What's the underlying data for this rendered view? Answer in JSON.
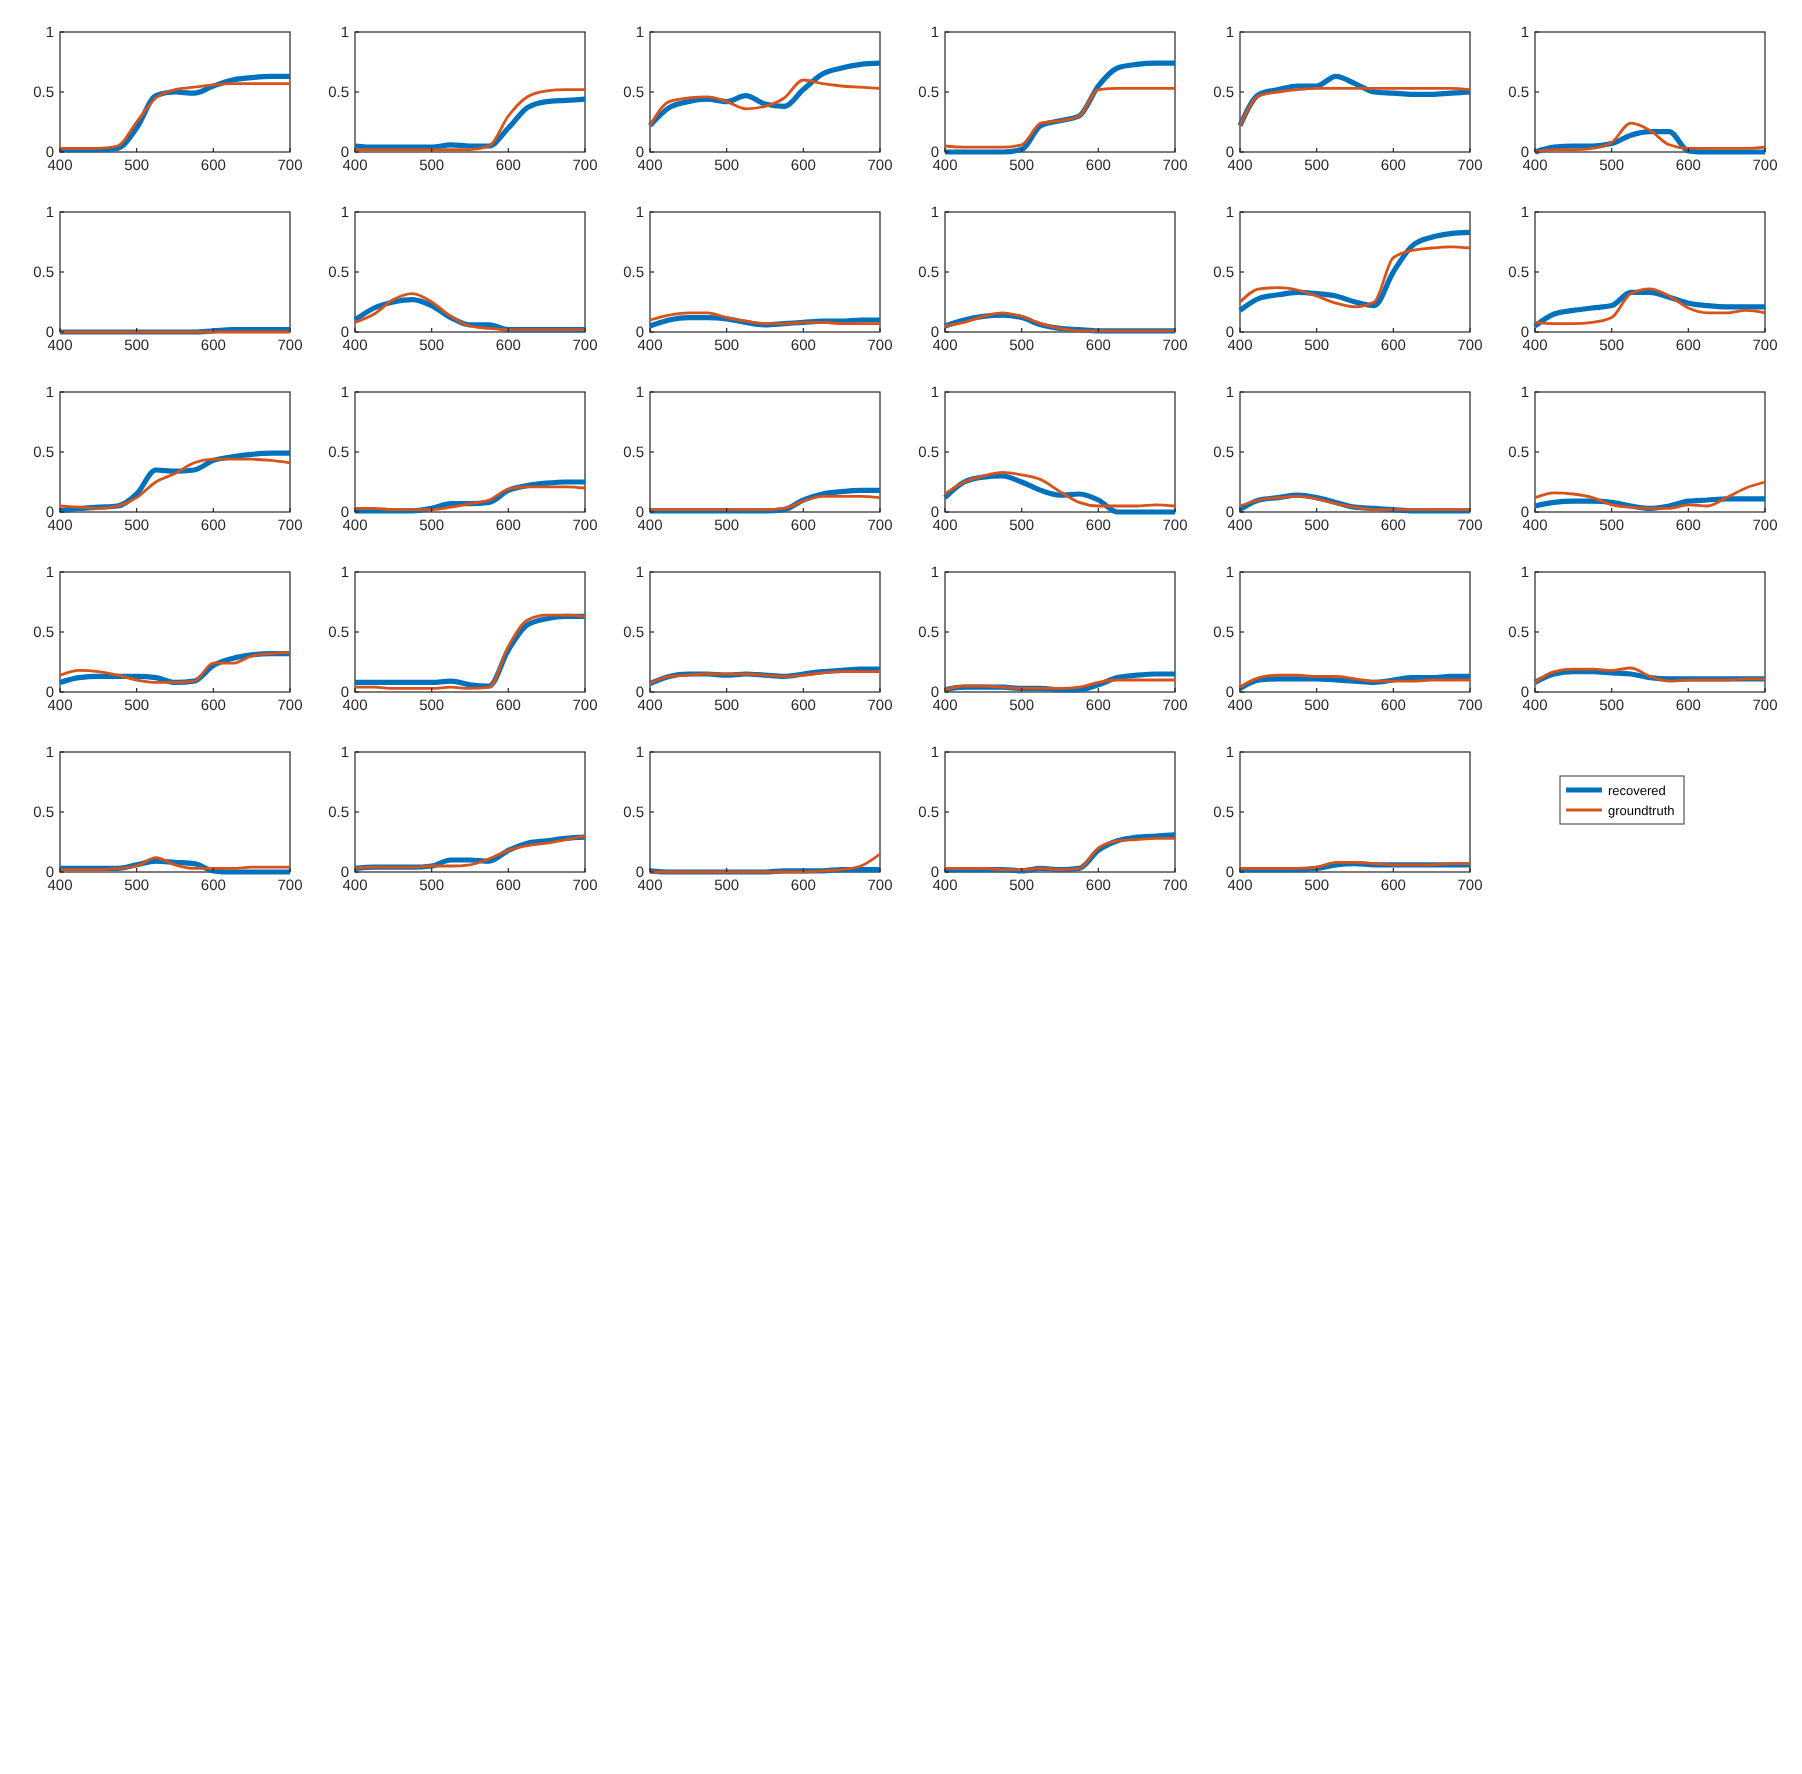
{
  "chart_data": [
    {
      "type": "line",
      "x": [
        400,
        425,
        450,
        475,
        500,
        525,
        550,
        575,
        600,
        625,
        650,
        675,
        700
      ],
      "xlim": [
        400,
        700
      ],
      "xticks": [
        400,
        500,
        600,
        700
      ],
      "ylim": [
        0,
        1
      ],
      "yticks": [
        0,
        0.5,
        1
      ],
      "series": [
        {
          "color": "#0072bd",
          "values": [
            0.02,
            0.02,
            0.02,
            0.03,
            0.2,
            0.47,
            0.5,
            0.49,
            0.55,
            0.6,
            0.62,
            0.63,
            0.63
          ]
        },
        {
          "color": "#d95319",
          "values": [
            0.03,
            0.03,
            0.03,
            0.05,
            0.25,
            0.45,
            0.52,
            0.54,
            0.56,
            0.57,
            0.57,
            0.57,
            0.57
          ]
        }
      ]
    },
    {
      "type": "line",
      "x": [
        400,
        425,
        450,
        475,
        500,
        525,
        550,
        575,
        600,
        625,
        650,
        675,
        700
      ],
      "xlim": [
        400,
        700
      ],
      "xticks": [
        400,
        500,
        600,
        700
      ],
      "ylim": [
        0,
        1
      ],
      "yticks": [
        0,
        0.5,
        1
      ],
      "series": [
        {
          "color": "#0072bd",
          "values": [
            0.05,
            0.04,
            0.04,
            0.04,
            0.04,
            0.06,
            0.05,
            0.05,
            0.2,
            0.37,
            0.42,
            0.43,
            0.44
          ]
        },
        {
          "color": "#d95319",
          "values": [
            0.02,
            0.02,
            0.02,
            0.02,
            0.02,
            0.02,
            0.02,
            0.05,
            0.3,
            0.46,
            0.51,
            0.52,
            0.52
          ]
        }
      ]
    },
    {
      "type": "line",
      "x": [
        400,
        425,
        450,
        475,
        500,
        525,
        550,
        575,
        600,
        625,
        650,
        675,
        700
      ],
      "xlim": [
        400,
        700
      ],
      "xticks": [
        400,
        500,
        600,
        700
      ],
      "ylim": [
        0,
        1
      ],
      "yticks": [
        0,
        0.5,
        1
      ],
      "series": [
        {
          "color": "#0072bd",
          "values": [
            0.22,
            0.37,
            0.42,
            0.44,
            0.42,
            0.47,
            0.4,
            0.38,
            0.52,
            0.65,
            0.7,
            0.73,
            0.74
          ]
        },
        {
          "color": "#d95319",
          "values": [
            0.22,
            0.42,
            0.45,
            0.46,
            0.42,
            0.36,
            0.38,
            0.45,
            0.6,
            0.57,
            0.55,
            0.54,
            0.53
          ]
        }
      ]
    },
    {
      "type": "line",
      "x": [
        400,
        425,
        450,
        475,
        500,
        525,
        550,
        575,
        600,
        625,
        650,
        675,
        700
      ],
      "xlim": [
        400,
        700
      ],
      "xticks": [
        400,
        500,
        600,
        700
      ],
      "ylim": [
        0,
        1
      ],
      "yticks": [
        0,
        0.5,
        1
      ],
      "series": [
        {
          "color": "#0072bd",
          "values": [
            0,
            0,
            0,
            0,
            0.02,
            0.22,
            0.26,
            0.3,
            0.55,
            0.7,
            0.73,
            0.74,
            0.74
          ]
        },
        {
          "color": "#d95319",
          "values": [
            0.05,
            0.04,
            0.04,
            0.04,
            0.06,
            0.24,
            0.26,
            0.3,
            0.52,
            0.53,
            0.53,
            0.53,
            0.53
          ]
        }
      ]
    },
    {
      "type": "line",
      "x": [
        400,
        425,
        450,
        475,
        500,
        525,
        550,
        575,
        600,
        625,
        650,
        675,
        700
      ],
      "xlim": [
        400,
        700
      ],
      "xticks": [
        400,
        500,
        600,
        700
      ],
      "ylim": [
        0,
        1
      ],
      "yticks": [
        0,
        0.5,
        1
      ],
      "series": [
        {
          "color": "#0072bd",
          "values": [
            0.22,
            0.48,
            0.52,
            0.55,
            0.55,
            0.63,
            0.57,
            0.5,
            0.49,
            0.48,
            0.48,
            0.49,
            0.5
          ]
        },
        {
          "color": "#d95319",
          "values": [
            0.22,
            0.47,
            0.5,
            0.52,
            0.53,
            0.53,
            0.53,
            0.53,
            0.53,
            0.53,
            0.53,
            0.53,
            0.52
          ]
        }
      ]
    },
    {
      "type": "line",
      "x": [
        400,
        425,
        450,
        475,
        500,
        525,
        550,
        575,
        600,
        625,
        650,
        675,
        700
      ],
      "xlim": [
        400,
        700
      ],
      "xticks": [
        400,
        500,
        600,
        700
      ],
      "ylim": [
        0,
        1
      ],
      "yticks": [
        0,
        0.5,
        1
      ],
      "series": [
        {
          "color": "#0072bd",
          "values": [
            0,
            0.04,
            0.05,
            0.05,
            0.07,
            0.14,
            0.17,
            0.17,
            0.01,
            0,
            0,
            0,
            0
          ]
        },
        {
          "color": "#d95319",
          "values": [
            0,
            0.02,
            0.02,
            0.03,
            0.08,
            0.24,
            0.18,
            0.06,
            0.03,
            0.03,
            0.03,
            0.03,
            0.04
          ]
        }
      ]
    },
    {
      "type": "line",
      "x": [
        400,
        425,
        450,
        475,
        500,
        525,
        550,
        575,
        600,
        625,
        650,
        675,
        700
      ],
      "xlim": [
        400,
        700
      ],
      "xticks": [
        400,
        500,
        600,
        700
      ],
      "ylim": [
        0,
        1
      ],
      "yticks": [
        0,
        0.5,
        1
      ],
      "series": [
        {
          "color": "#0072bd",
          "values": [
            0,
            0,
            0,
            0,
            0,
            0,
            0,
            0,
            0.01,
            0.02,
            0.02,
            0.02,
            0.02
          ]
        },
        {
          "color": "#d95319",
          "values": [
            0,
            0,
            0,
            0,
            0,
            0,
            0,
            0,
            0,
            0,
            0,
            0,
            0
          ]
        }
      ]
    },
    {
      "type": "line",
      "x": [
        400,
        425,
        450,
        475,
        500,
        525,
        550,
        575,
        600,
        625,
        650,
        675,
        700
      ],
      "xlim": [
        400,
        700
      ],
      "xticks": [
        400,
        500,
        600,
        700
      ],
      "ylim": [
        0,
        1
      ],
      "yticks": [
        0,
        0.5,
        1
      ],
      "series": [
        {
          "color": "#0072bd",
          "values": [
            0.1,
            0.2,
            0.25,
            0.27,
            0.22,
            0.12,
            0.06,
            0.06,
            0.02,
            0.02,
            0.02,
            0.02,
            0.02
          ]
        },
        {
          "color": "#d95319",
          "values": [
            0.08,
            0.15,
            0.27,
            0.32,
            0.25,
            0.13,
            0.05,
            0.03,
            0.02,
            0.02,
            0.02,
            0.02,
            0.02
          ]
        }
      ]
    },
    {
      "type": "line",
      "x": [
        400,
        425,
        450,
        475,
        500,
        525,
        550,
        575,
        600,
        625,
        650,
        675,
        700
      ],
      "xlim": [
        400,
        700
      ],
      "xticks": [
        400,
        500,
        600,
        700
      ],
      "ylim": [
        0,
        1
      ],
      "yticks": [
        0,
        0.5,
        1
      ],
      "series": [
        {
          "color": "#0072bd",
          "values": [
            0.05,
            0.1,
            0.12,
            0.12,
            0.11,
            0.08,
            0.06,
            0.07,
            0.08,
            0.09,
            0.09,
            0.1,
            0.1
          ]
        },
        {
          "color": "#d95319",
          "values": [
            0.1,
            0.14,
            0.16,
            0.16,
            0.12,
            0.09,
            0.07,
            0.07,
            0.08,
            0.08,
            0.07,
            0.07,
            0.07
          ]
        }
      ]
    },
    {
      "type": "line",
      "x": [
        400,
        425,
        450,
        475,
        500,
        525,
        550,
        575,
        600,
        625,
        650,
        675,
        700
      ],
      "xlim": [
        400,
        700
      ],
      "xticks": [
        400,
        500,
        600,
        700
      ],
      "ylim": [
        0,
        1
      ],
      "yticks": [
        0,
        0.5,
        1
      ],
      "series": [
        {
          "color": "#0072bd",
          "values": [
            0.05,
            0.1,
            0.13,
            0.14,
            0.12,
            0.06,
            0.03,
            0.02,
            0.01,
            0.01,
            0.01,
            0.01,
            0.01
          ]
        },
        {
          "color": "#d95319",
          "values": [
            0.05,
            0.08,
            0.13,
            0.16,
            0.13,
            0.07,
            0.03,
            0.01,
            0.01,
            0.01,
            0.01,
            0.01,
            0.01
          ]
        }
      ]
    },
    {
      "type": "line",
      "x": [
        400,
        425,
        450,
        475,
        500,
        525,
        550,
        575,
        600,
        625,
        650,
        675,
        700
      ],
      "xlim": [
        400,
        700
      ],
      "xticks": [
        400,
        500,
        600,
        700
      ],
      "ylim": [
        0,
        1
      ],
      "yticks": [
        0,
        0.5,
        1
      ],
      "series": [
        {
          "color": "#0072bd",
          "values": [
            0.18,
            0.28,
            0.31,
            0.33,
            0.32,
            0.3,
            0.25,
            0.22,
            0.5,
            0.72,
            0.79,
            0.82,
            0.83
          ]
        },
        {
          "color": "#d95319",
          "values": [
            0.25,
            0.36,
            0.37,
            0.35,
            0.3,
            0.24,
            0.21,
            0.25,
            0.62,
            0.68,
            0.7,
            0.71,
            0.7
          ]
        }
      ]
    },
    {
      "type": "line",
      "x": [
        400,
        425,
        450,
        475,
        500,
        525,
        550,
        575,
        600,
        625,
        650,
        675,
        700
      ],
      "xlim": [
        400,
        700
      ],
      "xticks": [
        400,
        500,
        600,
        700
      ],
      "ylim": [
        0,
        1
      ],
      "yticks": [
        0,
        0.5,
        1
      ],
      "series": [
        {
          "color": "#0072bd",
          "values": [
            0.05,
            0.15,
            0.18,
            0.2,
            0.22,
            0.33,
            0.33,
            0.29,
            0.24,
            0.22,
            0.21,
            0.21,
            0.21
          ]
        },
        {
          "color": "#d95319",
          "values": [
            0.08,
            0.07,
            0.07,
            0.08,
            0.12,
            0.32,
            0.36,
            0.3,
            0.2,
            0.16,
            0.16,
            0.18,
            0.16
          ]
        }
      ]
    },
    {
      "type": "line",
      "x": [
        400,
        425,
        450,
        475,
        500,
        525,
        550,
        575,
        600,
        625,
        650,
        675,
        700
      ],
      "xlim": [
        400,
        700
      ],
      "xticks": [
        400,
        500,
        600,
        700
      ],
      "ylim": [
        0,
        1
      ],
      "yticks": [
        0,
        0.5,
        1
      ],
      "series": [
        {
          "color": "#0072bd",
          "values": [
            0.01,
            0.03,
            0.04,
            0.05,
            0.15,
            0.35,
            0.34,
            0.35,
            0.43,
            0.46,
            0.48,
            0.49,
            0.49
          ]
        },
        {
          "color": "#d95319",
          "values": [
            0.05,
            0.04,
            0.03,
            0.05,
            0.12,
            0.25,
            0.32,
            0.41,
            0.44,
            0.44,
            0.44,
            0.43,
            0.41
          ]
        }
      ]
    },
    {
      "type": "line",
      "x": [
        400,
        425,
        450,
        475,
        500,
        525,
        550,
        575,
        600,
        625,
        650,
        675,
        700
      ],
      "xlim": [
        400,
        700
      ],
      "xticks": [
        400,
        500,
        600,
        700
      ],
      "ylim": [
        0,
        1
      ],
      "yticks": [
        0,
        0.5,
        1
      ],
      "series": [
        {
          "color": "#0072bd",
          "values": [
            0.01,
            0.01,
            0.01,
            0.01,
            0.03,
            0.07,
            0.07,
            0.08,
            0.18,
            0.22,
            0.24,
            0.25,
            0.25
          ]
        },
        {
          "color": "#d95319",
          "values": [
            0.03,
            0.03,
            0.02,
            0.02,
            0.02,
            0.04,
            0.07,
            0.1,
            0.19,
            0.21,
            0.21,
            0.21,
            0.2
          ]
        }
      ]
    },
    {
      "type": "line",
      "x": [
        400,
        425,
        450,
        475,
        500,
        525,
        550,
        575,
        600,
        625,
        650,
        675,
        700
      ],
      "xlim": [
        400,
        700
      ],
      "xticks": [
        400,
        500,
        600,
        700
      ],
      "ylim": [
        0,
        1
      ],
      "yticks": [
        0,
        0.5,
        1
      ],
      "series": [
        {
          "color": "#0072bd",
          "values": [
            0.01,
            0.01,
            0.01,
            0.01,
            0.01,
            0.01,
            0.01,
            0.02,
            0.1,
            0.15,
            0.17,
            0.18,
            0.18
          ]
        },
        {
          "color": "#d95319",
          "values": [
            0.02,
            0.02,
            0.02,
            0.02,
            0.02,
            0.02,
            0.02,
            0.03,
            0.09,
            0.13,
            0.13,
            0.13,
            0.12
          ]
        }
      ]
    },
    {
      "type": "line",
      "x": [
        400,
        425,
        450,
        475,
        500,
        525,
        550,
        575,
        600,
        625,
        650,
        675,
        700
      ],
      "xlim": [
        400,
        700
      ],
      "xticks": [
        400,
        500,
        600,
        700
      ],
      "ylim": [
        0,
        1
      ],
      "yticks": [
        0,
        0.5,
        1
      ],
      "series": [
        {
          "color": "#0072bd",
          "values": [
            0.12,
            0.25,
            0.29,
            0.3,
            0.25,
            0.18,
            0.14,
            0.15,
            0.1,
            0,
            0,
            0,
            0
          ]
        },
        {
          "color": "#d95319",
          "values": [
            0.15,
            0.25,
            0.3,
            0.33,
            0.31,
            0.27,
            0.17,
            0.08,
            0.05,
            0.05,
            0.05,
            0.06,
            0.05
          ]
        }
      ]
    },
    {
      "type": "line",
      "x": [
        400,
        425,
        450,
        475,
        500,
        525,
        550,
        575,
        600,
        625,
        650,
        675,
        700
      ],
      "xlim": [
        400,
        700
      ],
      "xticks": [
        400,
        500,
        600,
        700
      ],
      "ylim": [
        0,
        1
      ],
      "yticks": [
        0,
        0.5,
        1
      ],
      "series": [
        {
          "color": "#0072bd",
          "values": [
            0.02,
            0.1,
            0.12,
            0.14,
            0.12,
            0.08,
            0.04,
            0.03,
            0.02,
            0.01,
            0.01,
            0.01,
            0.01
          ]
        },
        {
          "color": "#d95319",
          "values": [
            0.05,
            0.1,
            0.12,
            0.13,
            0.11,
            0.07,
            0.04,
            0.02,
            0.02,
            0.02,
            0.02,
            0.02,
            0.02
          ]
        }
      ]
    },
    {
      "type": "line",
      "x": [
        400,
        425,
        450,
        475,
        500,
        525,
        550,
        575,
        600,
        625,
        650,
        675,
        700
      ],
      "xlim": [
        400,
        700
      ],
      "xticks": [
        400,
        500,
        600,
        700
      ],
      "ylim": [
        0,
        1
      ],
      "yticks": [
        0,
        0.5,
        1
      ],
      "series": [
        {
          "color": "#0072bd",
          "values": [
            0.05,
            0.08,
            0.09,
            0.09,
            0.08,
            0.05,
            0.03,
            0.05,
            0.09,
            0.1,
            0.11,
            0.11,
            0.11
          ]
        },
        {
          "color": "#d95319",
          "values": [
            0.12,
            0.16,
            0.15,
            0.12,
            0.06,
            0.04,
            0.03,
            0.03,
            0.06,
            0.05,
            0.12,
            0.2,
            0.25
          ]
        }
      ]
    },
    {
      "type": "line",
      "x": [
        400,
        425,
        450,
        475,
        500,
        525,
        550,
        575,
        600,
        625,
        650,
        675,
        700
      ],
      "xlim": [
        400,
        700
      ],
      "xticks": [
        400,
        500,
        600,
        700
      ],
      "ylim": [
        0,
        1
      ],
      "yticks": [
        0,
        0.5,
        1
      ],
      "series": [
        {
          "color": "#0072bd",
          "values": [
            0.08,
            0.12,
            0.13,
            0.13,
            0.13,
            0.12,
            0.08,
            0.09,
            0.22,
            0.28,
            0.31,
            0.32,
            0.32
          ]
        },
        {
          "color": "#d95319",
          "values": [
            0.14,
            0.18,
            0.17,
            0.14,
            0.1,
            0.08,
            0.08,
            0.09,
            0.24,
            0.24,
            0.3,
            0.32,
            0.33
          ]
        }
      ]
    },
    {
      "type": "line",
      "x": [
        400,
        425,
        450,
        475,
        500,
        525,
        550,
        575,
        600,
        625,
        650,
        675,
        700
      ],
      "xlim": [
        400,
        700
      ],
      "xticks": [
        400,
        500,
        600,
        700
      ],
      "ylim": [
        0,
        1
      ],
      "yticks": [
        0,
        0.5,
        1
      ],
      "series": [
        {
          "color": "#0072bd",
          "values": [
            0.08,
            0.08,
            0.08,
            0.08,
            0.08,
            0.09,
            0.06,
            0.05,
            0.35,
            0.56,
            0.61,
            0.63,
            0.63
          ]
        },
        {
          "color": "#d95319",
          "values": [
            0.04,
            0.04,
            0.03,
            0.03,
            0.03,
            0.04,
            0.03,
            0.04,
            0.38,
            0.6,
            0.64,
            0.64,
            0.63
          ]
        }
      ]
    },
    {
      "type": "line",
      "x": [
        400,
        425,
        450,
        475,
        500,
        525,
        550,
        575,
        600,
        625,
        650,
        675,
        700
      ],
      "xlim": [
        400,
        700
      ],
      "xticks": [
        400,
        500,
        600,
        700
      ],
      "ylim": [
        0,
        1
      ],
      "yticks": [
        0,
        0.5,
        1
      ],
      "series": [
        {
          "color": "#0072bd",
          "values": [
            0.07,
            0.13,
            0.15,
            0.15,
            0.14,
            0.15,
            0.14,
            0.13,
            0.15,
            0.17,
            0.18,
            0.19,
            0.19
          ]
        },
        {
          "color": "#d95319",
          "values": [
            0.07,
            0.13,
            0.14,
            0.15,
            0.15,
            0.15,
            0.14,
            0.13,
            0.14,
            0.16,
            0.17,
            0.17,
            0.17
          ]
        }
      ]
    },
    {
      "type": "line",
      "x": [
        400,
        425,
        450,
        475,
        500,
        525,
        550,
        575,
        600,
        625,
        650,
        675,
        700
      ],
      "xlim": [
        400,
        700
      ],
      "xticks": [
        400,
        500,
        600,
        700
      ],
      "ylim": [
        0,
        1
      ],
      "yticks": [
        0,
        0.5,
        1
      ],
      "series": [
        {
          "color": "#0072bd",
          "values": [
            0.02,
            0.04,
            0.04,
            0.04,
            0.03,
            0.03,
            0.02,
            0.02,
            0.06,
            0.12,
            0.14,
            0.15,
            0.15
          ]
        },
        {
          "color": "#d95319",
          "values": [
            0.02,
            0.05,
            0.05,
            0.04,
            0.03,
            0.03,
            0.03,
            0.04,
            0.08,
            0.1,
            0.1,
            0.1,
            0.1
          ]
        }
      ]
    },
    {
      "type": "line",
      "x": [
        400,
        425,
        450,
        475,
        500,
        525,
        550,
        575,
        600,
        625,
        650,
        675,
        700
      ],
      "xlim": [
        400,
        700
      ],
      "xticks": [
        400,
        500,
        600,
        700
      ],
      "ylim": [
        0,
        1
      ],
      "yticks": [
        0,
        0.5,
        1
      ],
      "series": [
        {
          "color": "#0072bd",
          "values": [
            0.03,
            0.1,
            0.11,
            0.11,
            0.11,
            0.1,
            0.09,
            0.08,
            0.1,
            0.12,
            0.12,
            0.13,
            0.13
          ]
        },
        {
          "color": "#d95319",
          "values": [
            0.04,
            0.12,
            0.14,
            0.14,
            0.13,
            0.13,
            0.11,
            0.09,
            0.09,
            0.09,
            0.1,
            0.1,
            0.1
          ]
        }
      ]
    },
    {
      "type": "line",
      "x": [
        400,
        425,
        450,
        475,
        500,
        525,
        550,
        575,
        600,
        625,
        650,
        675,
        700
      ],
      "xlim": [
        400,
        700
      ],
      "xticks": [
        400,
        500,
        600,
        700
      ],
      "ylim": [
        0,
        1
      ],
      "yticks": [
        0,
        0.5,
        1
      ],
      "series": [
        {
          "color": "#0072bd",
          "values": [
            0.08,
            0.15,
            0.17,
            0.17,
            0.16,
            0.15,
            0.12,
            0.11,
            0.11,
            0.11,
            0.11,
            0.11,
            0.11
          ]
        },
        {
          "color": "#d95319",
          "values": [
            0.08,
            0.17,
            0.19,
            0.19,
            0.18,
            0.2,
            0.13,
            0.09,
            0.1,
            0.1,
            0.1,
            0.11,
            0.11
          ]
        }
      ]
    },
    {
      "type": "line",
      "x": [
        400,
        425,
        450,
        475,
        500,
        525,
        550,
        575,
        600,
        625,
        650,
        675,
        700
      ],
      "xlim": [
        400,
        700
      ],
      "xticks": [
        400,
        500,
        600,
        700
      ],
      "ylim": [
        0,
        1
      ],
      "yticks": [
        0,
        0.5,
        1
      ],
      "series": [
        {
          "color": "#0072bd",
          "values": [
            0.03,
            0.03,
            0.03,
            0.03,
            0.06,
            0.09,
            0.08,
            0.07,
            0.01,
            0,
            0,
            0,
            0
          ]
        },
        {
          "color": "#d95319",
          "values": [
            0.02,
            0.02,
            0.02,
            0.03,
            0.05,
            0.12,
            0.06,
            0.03,
            0.03,
            0.03,
            0.04,
            0.04,
            0.04
          ]
        }
      ]
    },
    {
      "type": "line",
      "x": [
        400,
        425,
        450,
        475,
        500,
        525,
        550,
        575,
        600,
        625,
        650,
        675,
        700
      ],
      "xlim": [
        400,
        700
      ],
      "xticks": [
        400,
        500,
        600,
        700
      ],
      "ylim": [
        0,
        1
      ],
      "yticks": [
        0,
        0.5,
        1
      ],
      "series": [
        {
          "color": "#0072bd",
          "values": [
            0.03,
            0.04,
            0.04,
            0.04,
            0.05,
            0.1,
            0.1,
            0.09,
            0.18,
            0.24,
            0.26,
            0.28,
            0.29
          ]
        },
        {
          "color": "#d95319",
          "values": [
            0.03,
            0.04,
            0.04,
            0.04,
            0.05,
            0.05,
            0.06,
            0.11,
            0.18,
            0.22,
            0.24,
            0.27,
            0.3
          ]
        }
      ]
    },
    {
      "type": "line",
      "x": [
        400,
        425,
        450,
        475,
        500,
        525,
        550,
        575,
        600,
        625,
        650,
        675,
        700
      ],
      "xlim": [
        400,
        700
      ],
      "xticks": [
        400,
        500,
        600,
        700
      ],
      "ylim": [
        0,
        1
      ],
      "yticks": [
        0,
        0.5,
        1
      ],
      "series": [
        {
          "color": "#0072bd",
          "values": [
            0.01,
            0,
            0,
            0,
            0,
            0,
            0,
            0.01,
            0.01,
            0.01,
            0.02,
            0.02,
            0.02
          ]
        },
        {
          "color": "#d95319",
          "values": [
            0,
            0,
            0,
            0,
            0,
            0,
            0,
            0,
            0,
            0.01,
            0.02,
            0.05,
            0.15
          ]
        }
      ]
    },
    {
      "type": "line",
      "x": [
        400,
        425,
        450,
        475,
        500,
        525,
        550,
        575,
        600,
        625,
        650,
        675,
        700
      ],
      "xlim": [
        400,
        700
      ],
      "xticks": [
        400,
        500,
        600,
        700
      ],
      "ylim": [
        0,
        1
      ],
      "yticks": [
        0,
        0.5,
        1
      ],
      "series": [
        {
          "color": "#0072bd",
          "values": [
            0.02,
            0.02,
            0.02,
            0.02,
            0.01,
            0.03,
            0.02,
            0.03,
            0.18,
            0.26,
            0.29,
            0.3,
            0.31
          ]
        },
        {
          "color": "#d95319",
          "values": [
            0.03,
            0.03,
            0.03,
            0.02,
            0.02,
            0.03,
            0.02,
            0.03,
            0.2,
            0.26,
            0.27,
            0.28,
            0.28
          ]
        }
      ]
    },
    {
      "type": "line",
      "x": [
        400,
        425,
        450,
        475,
        500,
        525,
        550,
        575,
        600,
        625,
        650,
        675,
        700
      ],
      "xlim": [
        400,
        700
      ],
      "xticks": [
        400,
        500,
        600,
        700
      ],
      "ylim": [
        0,
        1
      ],
      "yticks": [
        0,
        0.5,
        1
      ],
      "legend": "right",
      "series": [
        {
          "name": "recovered",
          "color": "#0072bd",
          "values": [
            0.02,
            0.02,
            0.02,
            0.02,
            0.03,
            0.06,
            0.07,
            0.06,
            0.06,
            0.06,
            0.06,
            0.06,
            0.06
          ]
        },
        {
          "name": "groundtruth",
          "color": "#d95319",
          "values": [
            0.03,
            0.03,
            0.03,
            0.03,
            0.04,
            0.08,
            0.08,
            0.07,
            0.06,
            0.06,
            0.06,
            0.07,
            0.07
          ]
        }
      ]
    }
  ]
}
